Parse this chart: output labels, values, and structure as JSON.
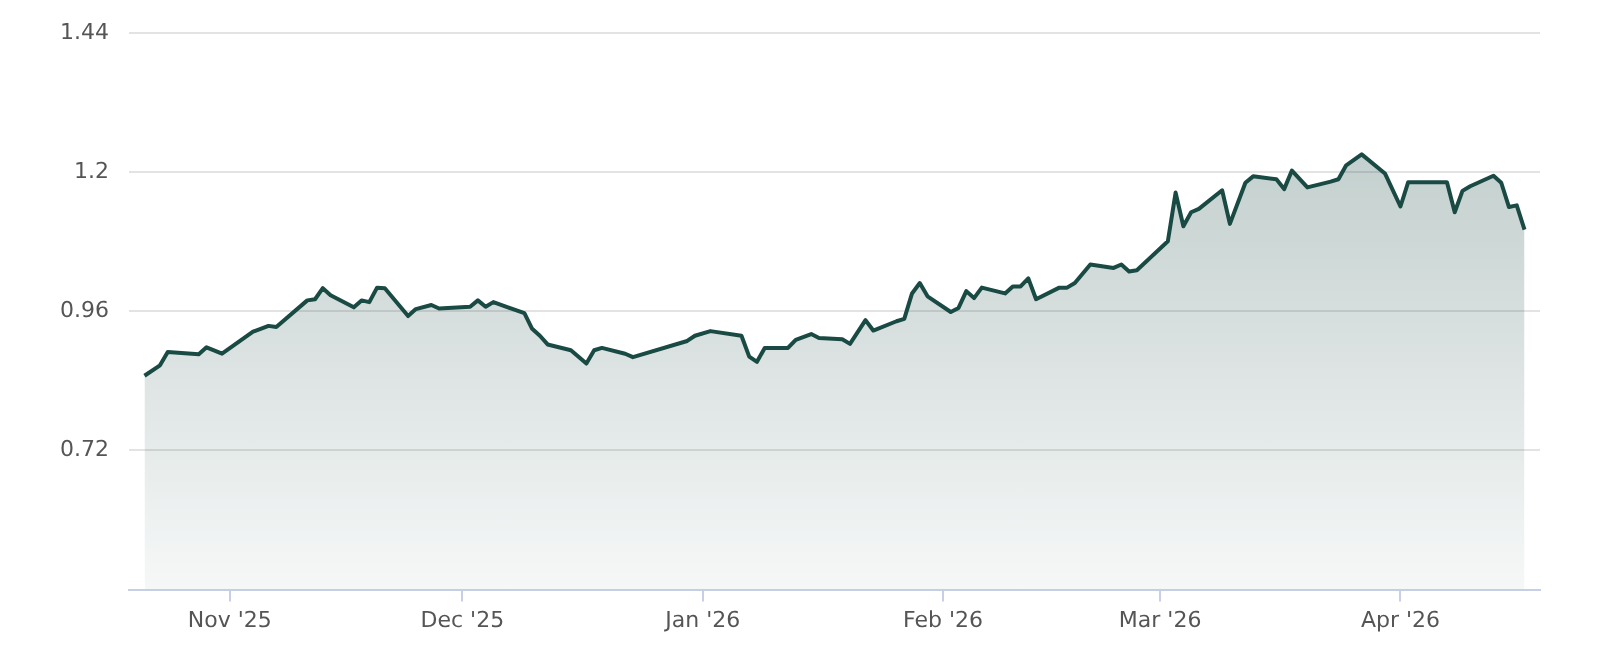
{
  "chart_data": {
    "type": "area",
    "x": [
      "2025-10-21",
      "2025-10-23",
      "2025-10-24",
      "2025-10-28",
      "2025-10-29",
      "2025-10-31",
      "2025-11-04",
      "2025-11-06",
      "2025-11-07",
      "2025-11-11",
      "2025-11-12",
      "2025-11-13",
      "2025-11-14",
      "2025-11-17",
      "2025-11-18",
      "2025-11-19",
      "2025-11-20",
      "2025-11-21",
      "2025-11-24",
      "2025-11-25",
      "2025-11-27",
      "2025-11-28",
      "2025-12-02",
      "2025-12-03",
      "2025-12-04",
      "2025-12-05",
      "2025-12-09",
      "2025-12-10",
      "2025-12-11",
      "2025-12-12",
      "2025-12-15",
      "2025-12-17",
      "2025-12-18",
      "2025-12-19",
      "2025-12-22",
      "2025-12-23",
      "2025-12-30",
      "2025-12-31",
      "2026-01-02",
      "2026-01-06",
      "2026-01-07",
      "2026-01-08",
      "2026-01-09",
      "2026-01-12",
      "2026-01-13",
      "2026-01-15",
      "2026-01-16",
      "2026-01-19",
      "2026-01-20",
      "2026-01-22",
      "2026-01-23",
      "2026-01-26",
      "2026-01-27",
      "2026-01-28",
      "2026-01-29",
      "2026-01-30",
      "2026-02-02",
      "2026-02-03",
      "2026-02-04",
      "2026-02-05",
      "2026-02-06",
      "2026-02-09",
      "2026-02-10",
      "2026-02-11",
      "2026-02-12",
      "2026-02-13",
      "2026-02-16",
      "2026-02-17",
      "2026-02-18",
      "2026-02-20",
      "2026-02-23",
      "2026-02-24",
      "2026-02-25",
      "2026-02-26",
      "2026-03-02",
      "2026-03-03",
      "2026-03-04",
      "2026-03-05",
      "2026-03-06",
      "2026-03-09",
      "2026-03-10",
      "2026-03-12",
      "2026-03-13",
      "2026-03-16",
      "2026-03-17",
      "2026-03-18",
      "2026-03-20",
      "2026-03-23",
      "2026-03-24",
      "2026-03-25",
      "2026-03-27",
      "2026-03-30",
      "2026-04-01",
      "2026-04-02",
      "2026-04-07",
      "2026-04-08",
      "2026-04-09",
      "2026-04-10",
      "2026-04-13",
      "2026-04-14",
      "2026-04-15",
      "2026-04-16",
      "2026-04-17"
    ],
    "series": [
      {
        "color": "#1a4a44",
        "values": [
          0.849,
          0.867,
          0.89,
          0.886,
          0.898,
          0.887,
          0.925,
          0.935,
          0.933,
          0.979,
          0.981,
          1.0,
          0.988,
          0.967,
          0.979,
          0.976,
          1.001,
          1.0,
          0.952,
          0.964,
          0.971,
          0.965,
          0.968,
          0.979,
          0.968,
          0.976,
          0.957,
          0.93,
          0.918,
          0.903,
          0.893,
          0.87,
          0.893,
          0.897,
          0.887,
          0.881,
          0.909,
          0.918,
          0.926,
          0.918,
          0.882,
          0.873,
          0.897,
          0.897,
          0.911,
          0.921,
          0.914,
          0.912,
          0.904,
          0.945,
          0.927,
          0.943,
          0.947,
          0.991,
          1.009,
          0.986,
          0.959,
          0.966,
          0.995,
          0.983,
          1.001,
          0.991,
          1.003,
          1.003,
          1.017,
          0.981,
          1.001,
          1.001,
          1.009,
          1.041,
          1.035,
          1.041,
          1.029,
          1.031,
          1.081,
          1.165,
          1.107,
          1.131,
          1.137,
          1.169,
          1.111,
          1.182,
          1.193,
          1.188,
          1.171,
          1.203,
          1.174,
          1.184,
          1.188,
          1.212,
          1.231,
          1.198,
          1.141,
          1.183,
          1.183,
          1.131,
          1.168,
          1.176,
          1.194,
          1.182,
          1.14,
          1.143,
          1.101
        ]
      }
    ],
    "xlim": [
      "2025-10-19",
      "2026-04-19"
    ],
    "xticks": [
      {
        "value": "2025-11-01",
        "label": "Nov '25"
      },
      {
        "value": "2025-12-01",
        "label": "Dec '25"
      },
      {
        "value": "2026-01-01",
        "label": "Jan '26"
      },
      {
        "value": "2026-02-01",
        "label": "Feb '26"
      },
      {
        "value": "2026-03-01",
        "label": "Mar '26"
      },
      {
        "value": "2026-04-01",
        "label": "Apr '26"
      }
    ],
    "ylim": [
      0.48,
      1.44
    ],
    "yticks": [
      0.72,
      0.96,
      1.2,
      1.44
    ],
    "grid": "y",
    "legend": false,
    "marker": "none",
    "line_style": "solid"
  }
}
